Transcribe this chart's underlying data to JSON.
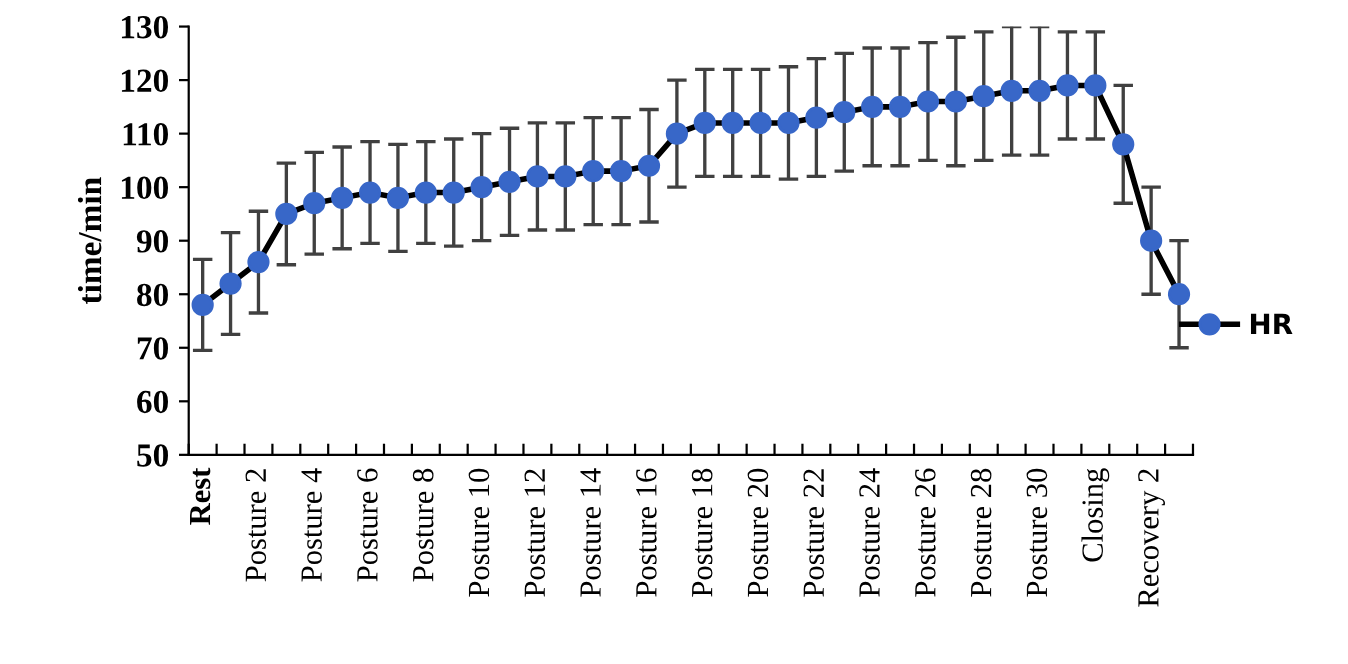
{
  "chart_data": {
    "type": "line",
    "ylabel": "time/min",
    "categories": [
      "Rest",
      null,
      "Posture 2",
      null,
      "Posture 4",
      null,
      "Posture 6",
      null,
      "Posture 8",
      null,
      "Posture 10",
      null,
      "Posture 12",
      null,
      "Posture 14",
      null,
      "Posture 16",
      null,
      "Posture 18",
      null,
      "Posture 20",
      null,
      "Posture 22",
      null,
      "Posture 24",
      null,
      "Posture 26",
      null,
      "Posture 28",
      null,
      "Posture 30",
      null,
      "Closing",
      null,
      "Recovery 2",
      null
    ],
    "series": [
      {
        "name": "HR",
        "color": "#3867c8",
        "values": [
          78,
          82,
          86,
          95,
          97,
          98,
          99,
          98,
          99,
          99,
          100,
          101,
          102,
          102,
          103,
          103,
          104,
          110,
          112,
          112,
          112,
          112,
          113,
          114,
          115,
          115,
          116,
          116,
          117,
          118,
          118,
          119,
          119,
          108,
          90,
          80
        ],
        "errors": [
          8.5,
          9.5,
          9.5,
          9.5,
          9.5,
          9.5,
          9.5,
          10,
          9.5,
          10,
          10,
          10,
          10,
          10,
          10,
          10,
          10.5,
          10,
          10,
          10,
          10,
          10.5,
          11,
          11,
          11,
          11,
          11,
          12,
          12,
          12,
          12,
          10,
          10,
          11,
          10,
          10
        ]
      }
    ],
    "ylim": [
      50,
      130
    ],
    "yticks": [
      50,
      60,
      70,
      80,
      90,
      100,
      110,
      120,
      130
    ],
    "grid": false,
    "legend": "right",
    "marker": "circle",
    "line_style": "solid"
  }
}
